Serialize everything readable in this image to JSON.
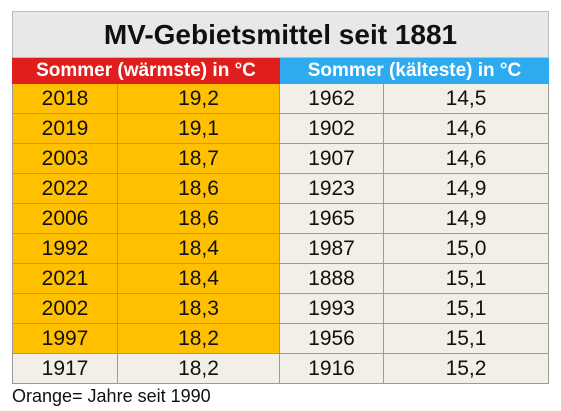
{
  "title": "MV-Gebietsmittel seit 1881",
  "headers": {
    "warm": "Sommer (wärmste) in °C",
    "cold": "Sommer (kälteste) in °C"
  },
  "rows": [
    {
      "warm_year": "2018",
      "warm_value": "19,2",
      "cold_year": "1962",
      "cold_value": "14,5",
      "orange": true
    },
    {
      "warm_year": "2019",
      "warm_value": "19,1",
      "cold_year": "1902",
      "cold_value": "14,6",
      "orange": true
    },
    {
      "warm_year": "2003",
      "warm_value": "18,7",
      "cold_year": "1907",
      "cold_value": "14,6",
      "orange": true
    },
    {
      "warm_year": "2022",
      "warm_value": "18,6",
      "cold_year": "1923",
      "cold_value": "14,9",
      "orange": true
    },
    {
      "warm_year": "2006",
      "warm_value": "18,6",
      "cold_year": "1965",
      "cold_value": "14,9",
      "orange": true
    },
    {
      "warm_year": "1992",
      "warm_value": "18,4",
      "cold_year": "1987",
      "cold_value": "15,0",
      "orange": true
    },
    {
      "warm_year": "2021",
      "warm_value": "18,4",
      "cold_year": "1888",
      "cold_value": "15,1",
      "orange": true
    },
    {
      "warm_year": "2002",
      "warm_value": "18,3",
      "cold_year": "1993",
      "cold_value": "15,1",
      "orange": true
    },
    {
      "warm_year": "1997",
      "warm_value": "18,2",
      "cold_year": "1956",
      "cold_value": "15,1",
      "orange": true
    },
    {
      "warm_year": "1917",
      "warm_value": "18,2",
      "cold_year": "1916",
      "cold_value": "15,2",
      "orange": false
    }
  ],
  "note": "Orange= Jahre seit 1990",
  "colors": {
    "orange": "#ffc000",
    "warm_header": "#e01e1e",
    "cold_header": "#2eaaee",
    "plain_row": "#f2f0e6"
  }
}
